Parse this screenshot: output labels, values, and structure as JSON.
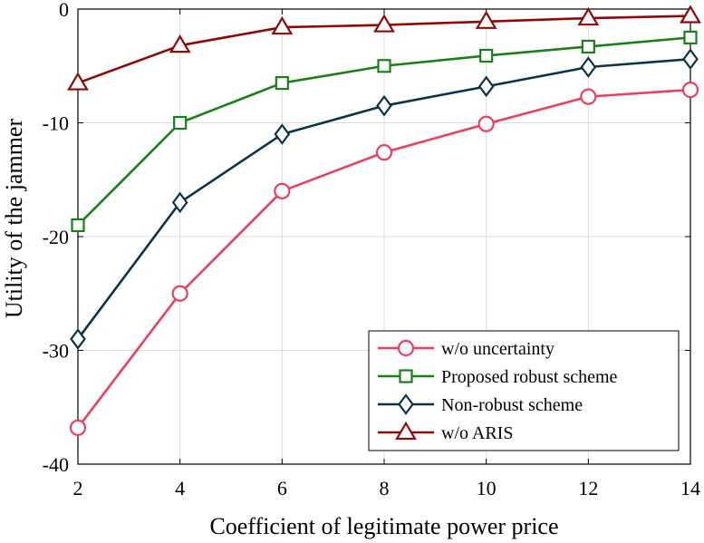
{
  "chart_data": {
    "type": "line",
    "title": "",
    "xlabel": "Coefficient of legitimate power price",
    "ylabel": "Utility of the jammer",
    "x": [
      2,
      4,
      6,
      8,
      10,
      12,
      14
    ],
    "xlim": [
      2,
      14
    ],
    "ylim": [
      -40,
      0
    ],
    "xticks": [
      2,
      4,
      6,
      8,
      10,
      12,
      14
    ],
    "yticks": [
      -40,
      -30,
      -20,
      -10,
      0
    ],
    "xtick_labels": [
      "2",
      "4",
      "6",
      "8",
      "10",
      "12",
      "14"
    ],
    "ytick_labels": [
      "-40",
      "-30",
      "-20",
      "-10",
      "0"
    ],
    "grid": true,
    "legend_location": "bottom-right",
    "series": [
      {
        "name": "w/o uncertainty",
        "color": "#e8405e",
        "marker": "circle",
        "values": [
          -36.8,
          -25.0,
          -16.0,
          -12.6,
          -10.1,
          -7.7,
          -7.1
        ]
      },
      {
        "name": "Proposed robust scheme",
        "color": "#1a7f1a",
        "marker": "square",
        "values": [
          -19.0,
          -10.0,
          -6.5,
          -5.0,
          -4.1,
          -3.3,
          -2.5
        ]
      },
      {
        "name": "Non-robust scheme",
        "color": "#0d3349",
        "marker": "diamond",
        "values": [
          -29.0,
          -17.0,
          -11.0,
          -8.5,
          -6.8,
          -5.1,
          -4.4
        ]
      },
      {
        "name": "w/o ARIS",
        "color": "#8b0a0a",
        "marker": "triangle",
        "values": [
          -6.5,
          -3.2,
          -1.6,
          -1.4,
          -1.1,
          -0.8,
          -0.6
        ]
      }
    ]
  }
}
